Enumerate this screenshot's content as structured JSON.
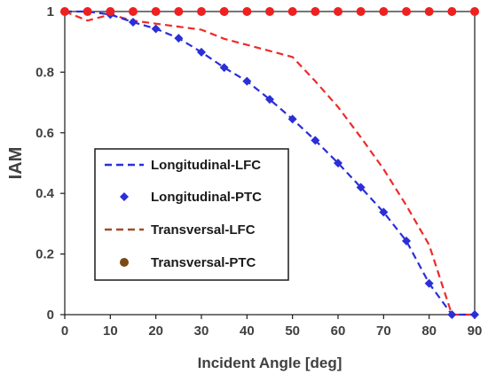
{
  "chart_data": {
    "type": "line",
    "title": "",
    "xlabel": "Incident Angle [deg]",
    "ylabel": "IAM",
    "xlim": [
      0,
      90
    ],
    "ylim": [
      0,
      1
    ],
    "x_ticks": [
      0,
      10,
      20,
      30,
      40,
      50,
      60,
      70,
      80,
      90
    ],
    "y_ticks": [
      0,
      0.2,
      0.4,
      0.6,
      0.8,
      1
    ],
    "grid": false,
    "legend_position": "center-left",
    "series": [
      {
        "name": "Longitudinal-LFC",
        "style": "dashed-line",
        "color": "#2a2fd8",
        "x": [
          0,
          5,
          10,
          15,
          20,
          25,
          30,
          35,
          40,
          45,
          50,
          55,
          60,
          65,
          70,
          75,
          80,
          85,
          90
        ],
        "y": [
          1.0,
          1.0,
          0.99,
          0.965,
          0.943,
          0.912,
          0.866,
          0.815,
          0.77,
          0.71,
          0.645,
          0.575,
          0.5,
          0.42,
          0.338,
          0.243,
          0.103,
          0.0,
          0.0
        ]
      },
      {
        "name": "Longitudinal-PTC",
        "style": "diamond-markers",
        "color": "#2a2fd8",
        "x": [
          10,
          15,
          20,
          25,
          30,
          35,
          40,
          45,
          50,
          55,
          60,
          65,
          70,
          75,
          80,
          85,
          90
        ],
        "y": [
          0.99,
          0.965,
          0.943,
          0.912,
          0.866,
          0.815,
          0.77,
          0.71,
          0.645,
          0.575,
          0.5,
          0.42,
          0.338,
          0.243,
          0.103,
          0.0,
          0.0
        ]
      },
      {
        "name": "Transversal-LFC",
        "style": "dashed-line",
        "color": "#ee2a2a",
        "x": [
          0,
          5,
          10,
          15,
          20,
          25,
          30,
          35,
          40,
          45,
          50,
          55,
          60,
          65,
          70,
          75,
          80,
          85,
          90
        ],
        "y": [
          1.0,
          0.97,
          0.99,
          0.97,
          0.96,
          0.95,
          0.94,
          0.91,
          0.89,
          0.87,
          0.85,
          0.77,
          0.685,
          0.585,
          0.48,
          0.36,
          0.23,
          0.0,
          0.0
        ]
      },
      {
        "name": "Transversal-PTC",
        "style": "circle-markers",
        "color": "#ee2020",
        "x": [
          0,
          5,
          10,
          15,
          20,
          25,
          30,
          35,
          40,
          45,
          50,
          55,
          60,
          65,
          70,
          75,
          80,
          85,
          90
        ],
        "y": [
          1,
          1,
          1,
          1,
          1,
          1,
          1,
          1,
          1,
          1,
          1,
          1,
          1,
          1,
          1,
          1,
          1,
          1,
          1
        ]
      }
    ],
    "legend_entries": [
      {
        "name": "Longitudinal-LFC",
        "symbol": "dash",
        "color": "#2a2fd8"
      },
      {
        "name": "Longitudinal-PTC",
        "symbol": "diamond",
        "color": "#2a2fd8"
      },
      {
        "name": "Transversal-LFC",
        "symbol": "dash",
        "color": "#a34b2a"
      },
      {
        "name": "Transversal-PTC",
        "symbol": "circle",
        "color": "#7a4a14"
      }
    ]
  }
}
